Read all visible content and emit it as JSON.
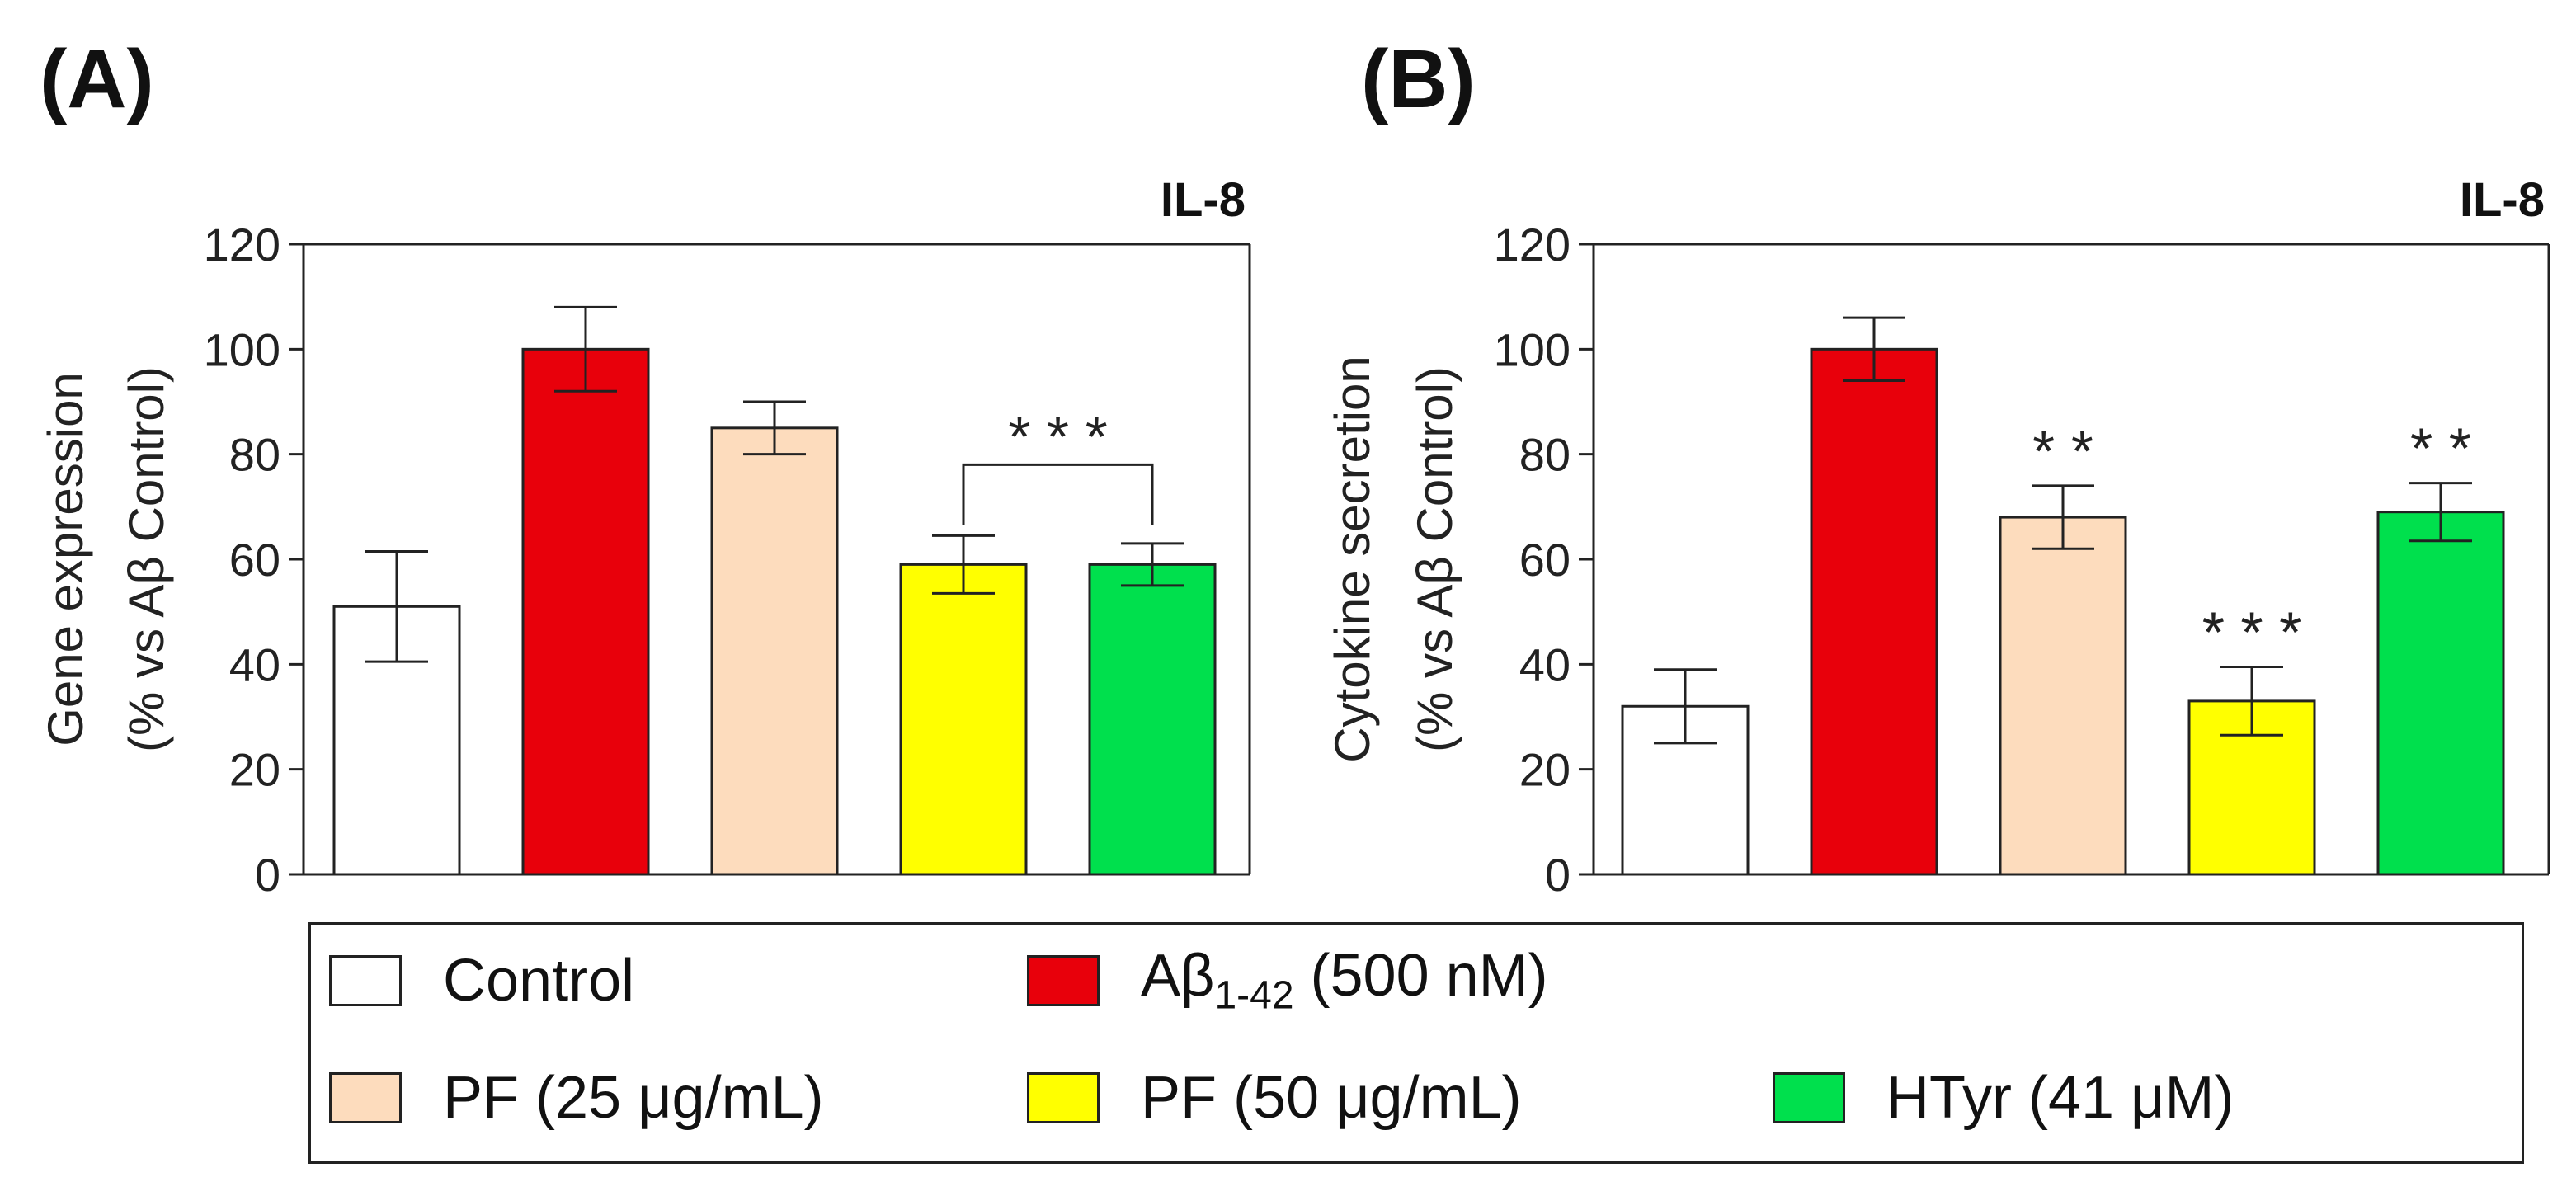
{
  "chart_data": [
    {
      "panel": "(A)",
      "type": "bar",
      "title": "IL-8",
      "ylabel": [
        "Gene expression",
        "(% vs Aβ Control)"
      ],
      "ylim": [
        0,
        120
      ],
      "yticks": [
        0,
        20,
        40,
        60,
        80,
        100,
        120
      ],
      "categories": [
        "Control",
        "Aβ1-42 (500 nM)",
        "PF (25 μg/mL)",
        "PF (50 μg/mL)",
        "HTyr (41 μM)"
      ],
      "values": [
        51,
        100,
        85,
        59,
        59
      ],
      "errors": [
        10.5,
        8,
        5,
        5.5,
        4
      ],
      "significance": [
        {
          "label": "* * *",
          "bracket": [
            3,
            4
          ],
          "level": 78
        }
      ]
    },
    {
      "panel": "(B)",
      "type": "bar",
      "title": "IL-8",
      "ylabel": [
        "Cytokine secretion",
        "(% vs Aβ Control)"
      ],
      "ylim": [
        0,
        120
      ],
      "yticks": [
        0,
        20,
        40,
        60,
        80,
        100,
        120
      ],
      "categories": [
        "Control",
        "Aβ1-42 (500 nM)",
        "PF (25 μg/mL)",
        "PF (50 μg/mL)",
        "HTyr (41 μM)"
      ],
      "values": [
        32,
        100,
        68,
        33,
        69
      ],
      "errors": [
        7,
        6,
        6,
        6.5,
        5.5
      ],
      "significance": [
        {
          "label": "* *",
          "bar": 2
        },
        {
          "label": "* * *",
          "bar": 3
        },
        {
          "label": "* *",
          "bar": 4
        }
      ]
    }
  ],
  "colors": [
    "#ffffff",
    "#e8000b",
    "#fddcbd",
    "#ffff00",
    "#00e04d"
  ],
  "legend": {
    "row1": [
      {
        "text": "Control",
        "color": "#ffffff"
      },
      {
        "text": "Aβ",
        "sub": "1-42",
        "tail": " (500 nM)",
        "color": "#e8000b"
      }
    ],
    "row2": [
      {
        "text": "PF (25 μg/mL)",
        "color": "#fddcbd"
      },
      {
        "text": "PF (50 μg/mL)",
        "color": "#ffff00"
      },
      {
        "text": "HTyr (41 μM)",
        "color": "#00e04d"
      }
    ]
  }
}
